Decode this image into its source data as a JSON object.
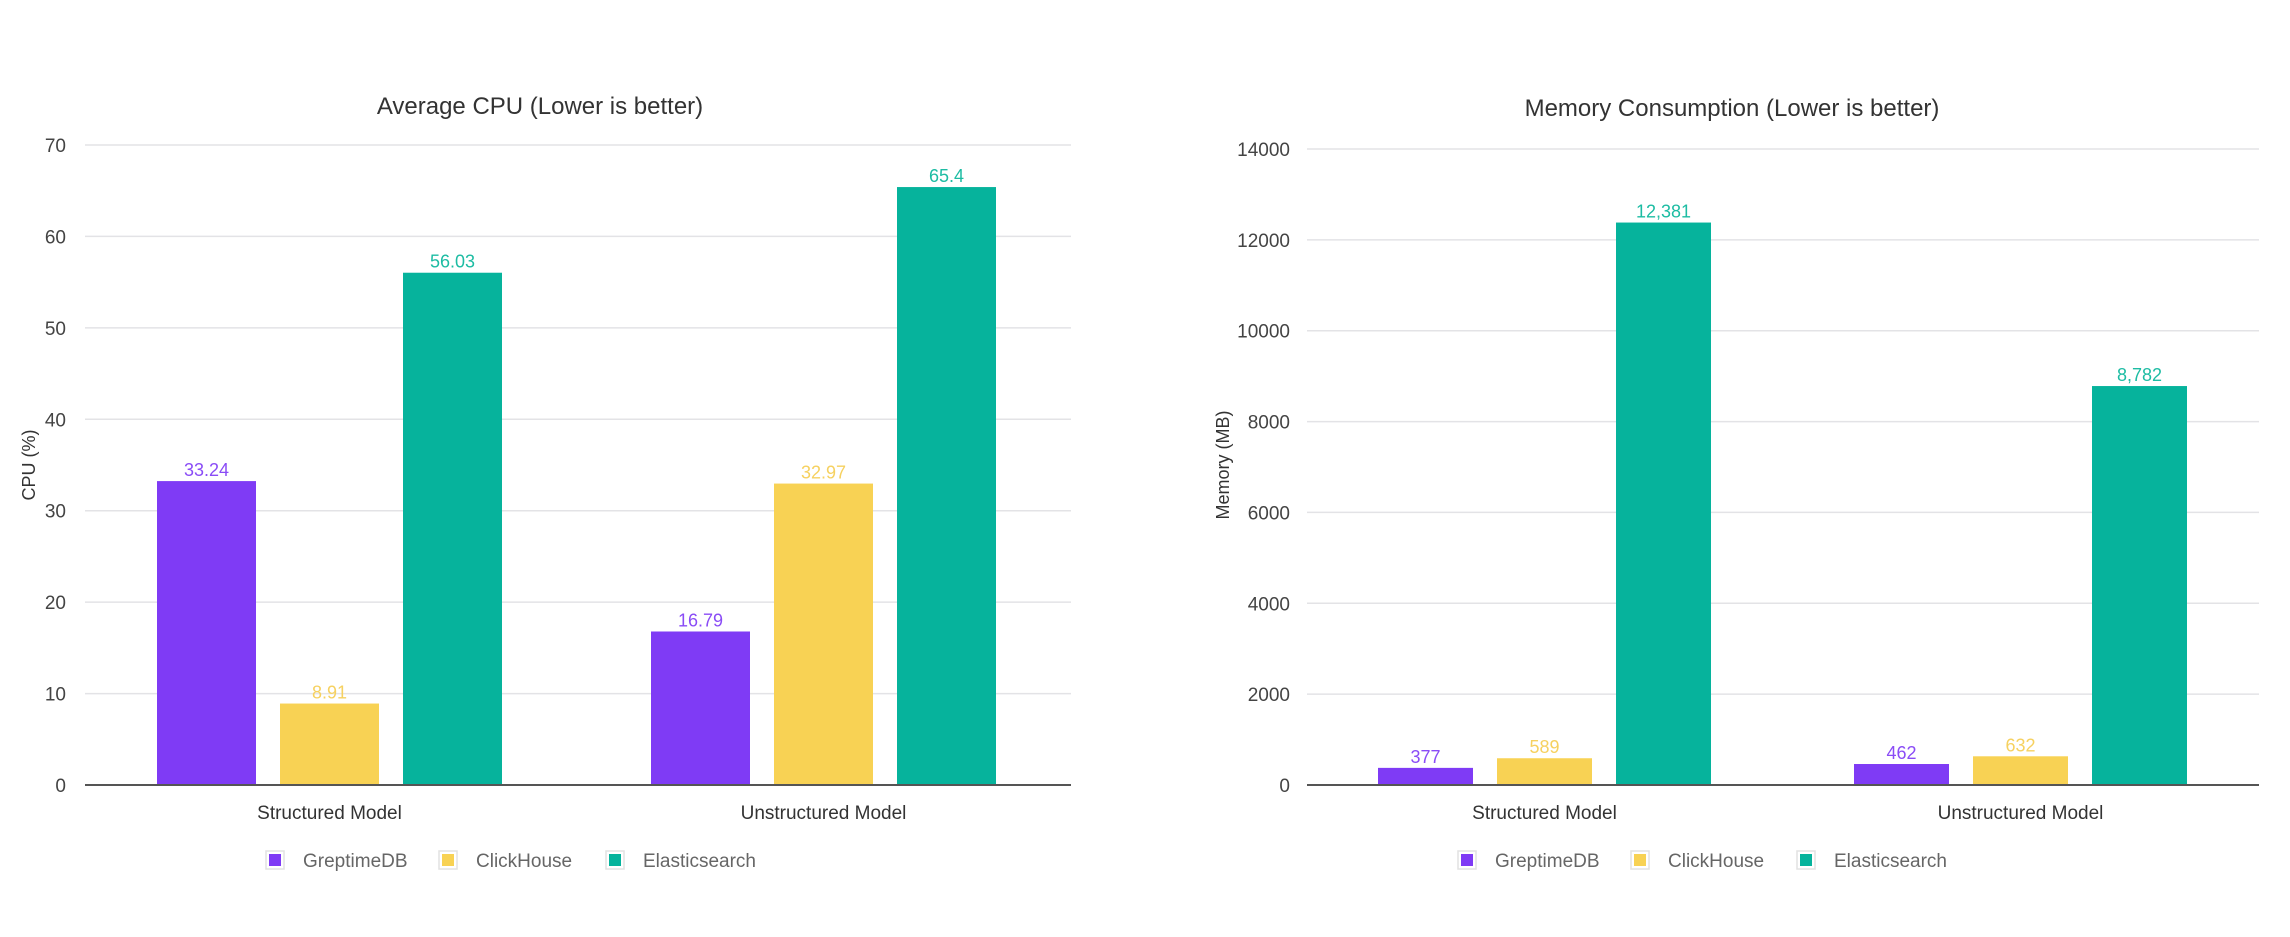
{
  "colors": {
    "GreptimeDB": "#7f3bf5",
    "ClickHouse": "#f8d254",
    "Elasticsearch": "#06b39c",
    "label_GreptimeDB": "#8a4cf6",
    "label_ClickHouse": "#f6d160",
    "label_Elasticsearch": "#1dbca3",
    "grid": "#e3e3e6",
    "axis": "#555555"
  },
  "chart_data": [
    {
      "type": "bar",
      "title": "Average CPU (Lower is better)",
      "xlabel": "",
      "ylabel": "CPU (%)",
      "ylim": [
        0,
        70
      ],
      "yticks": [
        0,
        10,
        20,
        30,
        40,
        50,
        60,
        70
      ],
      "grid": true,
      "legend_position": "bottom",
      "categories": [
        "Structured Model",
        "Unstructured Model"
      ],
      "series": [
        {
          "name": "GreptimeDB",
          "values": [
            33.24,
            16.79
          ],
          "labels": [
            "33.24",
            "16.79"
          ]
        },
        {
          "name": "ClickHouse",
          "values": [
            8.91,
            32.97
          ],
          "labels": [
            "8.91",
            "32.97"
          ]
        },
        {
          "name": "Elasticsearch",
          "values": [
            56.03,
            65.4
          ],
          "labels": [
            "56.03",
            "65.4"
          ]
        }
      ]
    },
    {
      "type": "bar",
      "title": "Memory Consumption (Lower is better)",
      "xlabel": "",
      "ylabel": "Memory (MB)",
      "ylim": [
        0,
        14000
      ],
      "yticks": [
        0,
        2000,
        4000,
        6000,
        8000,
        10000,
        12000,
        14000
      ],
      "grid": true,
      "legend_position": "bottom",
      "categories": [
        "Structured Model",
        "Unstructured Model"
      ],
      "series": [
        {
          "name": "GreptimeDB",
          "values": [
            377,
            462
          ],
          "labels": [
            "377",
            "462"
          ]
        },
        {
          "name": "ClickHouse",
          "values": [
            589,
            632
          ],
          "labels": [
            "589",
            "632"
          ]
        },
        {
          "name": "Elasticsearch",
          "values": [
            12381,
            8782
          ],
          "labels": [
            "12,381",
            "8,782"
          ]
        }
      ]
    }
  ],
  "legend": {
    "items": [
      "GreptimeDB",
      "ClickHouse",
      "Elasticsearch"
    ]
  }
}
